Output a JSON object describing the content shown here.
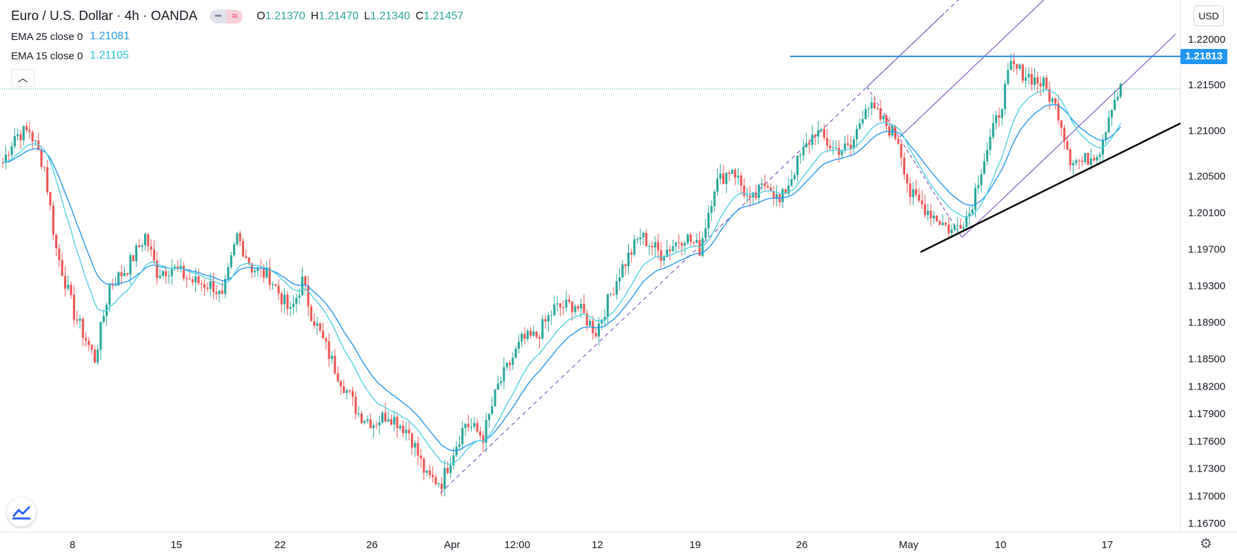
{
  "legend": {
    "symbol": "Euro / U.S. Dollar · 4h · OANDA",
    "open_label": "O",
    "open": "1.21370",
    "high_label": "H",
    "high": "1.21470",
    "low_label": "L",
    "low": "1.21340",
    "close_label": "C",
    "close": "1.21457",
    "ema1_label": "EMA 25 close 0",
    "ema1_value": "1.21081",
    "ema2_label": "EMA 15 close 0",
    "ema2_value": "1.21105",
    "icon1": "≈"
  },
  "currency_button": "USD",
  "price_badge": "1.21813",
  "colors": {
    "up": "#26a69a",
    "down": "#ef5350",
    "ema_slow": "#2196f3",
    "ema_fast": "#4dd0e1",
    "channel": "#7e57c2",
    "resistance": "#1e88e5",
    "trendline": "#000000"
  },
  "chart_data": {
    "type": "line",
    "title": "Euro / U.S. Dollar · 4h · OANDA",
    "y_ticks": [
      1.22,
      1.215,
      1.21,
      1.205,
      1.201,
      1.197,
      1.193,
      1.189,
      1.185,
      1.182,
      1.179,
      1.176,
      1.173,
      1.17,
      1.167
    ],
    "y_tick_labels": [
      "1.22000",
      "1.21500",
      "1.21000",
      "1.20500",
      "1.20100",
      "1.19700",
      "1.19300",
      "1.18900",
      "1.18500",
      "1.18200",
      "1.17900",
      "1.17600",
      "1.17300",
      "1.17000",
      "1.16700"
    ],
    "x_tick_labels": [
      "8",
      "15",
      "22",
      "26",
      "Apr",
      "12:00",
      "12",
      "19",
      "26",
      "May",
      "10",
      "17"
    ],
    "x_tick_bars": [
      24,
      59,
      94,
      125,
      152,
      174,
      201,
      234,
      270,
      306,
      337,
      373
    ],
    "bar_count": 378,
    "ylim": [
      1.1655,
      1.2235
    ],
    "price_path": [
      [
        0,
        1.2065
      ],
      [
        4,
        1.2095
      ],
      [
        9,
        1.21
      ],
      [
        14,
        1.206
      ],
      [
        18,
        1.197
      ],
      [
        24,
        1.19
      ],
      [
        31,
        1.185
      ],
      [
        36,
        1.193
      ],
      [
        42,
        1.195
      ],
      [
        48,
        1.1985
      ],
      [
        52,
        1.1945
      ],
      [
        57,
        1.195
      ],
      [
        64,
        1.1935
      ],
      [
        71,
        1.193
      ],
      [
        74,
        1.1915
      ],
      [
        79,
        1.1985
      ],
      [
        84,
        1.195
      ],
      [
        90,
        1.194
      ],
      [
        97,
        1.19
      ],
      [
        101,
        1.1935
      ],
      [
        104,
        1.19
      ],
      [
        112,
        1.184
      ],
      [
        120,
        1.179
      ],
      [
        125,
        1.178
      ],
      [
        130,
        1.179
      ],
      [
        137,
        1.177
      ],
      [
        143,
        1.172
      ],
      [
        148,
        1.1715
      ],
      [
        152,
        1.175
      ],
      [
        156,
        1.178
      ],
      [
        162,
        1.1765
      ],
      [
        167,
        1.182
      ],
      [
        175,
        1.187
      ],
      [
        180,
        1.1875
      ],
      [
        186,
        1.1905
      ],
      [
        193,
        1.191
      ],
      [
        200,
        1.188
      ],
      [
        208,
        1.1945
      ],
      [
        215,
        1.1985
      ],
      [
        222,
        1.1965
      ],
      [
        230,
        1.1985
      ],
      [
        235,
        1.197
      ],
      [
        240,
        1.204
      ],
      [
        246,
        1.206
      ],
      [
        252,
        1.202
      ],
      [
        258,
        1.2045
      ],
      [
        262,
        1.202
      ],
      [
        268,
        1.2065
      ],
      [
        274,
        1.21
      ],
      [
        280,
        1.208
      ],
      [
        286,
        1.208
      ],
      [
        291,
        1.213
      ],
      [
        297,
        1.211
      ],
      [
        302,
        1.209
      ],
      [
        306,
        1.203
      ],
      [
        313,
        1.201
      ],
      [
        320,
        1.199
      ],
      [
        326,
        1.201
      ],
      [
        330,
        1.206
      ],
      [
        336,
        1.212
      ],
      [
        340,
        1.217
      ],
      [
        346,
        1.216
      ],
      [
        351,
        1.215
      ],
      [
        356,
        1.212
      ],
      [
        360,
        1.207
      ],
      [
        364,
        1.2065
      ],
      [
        370,
        1.208
      ],
      [
        374,
        1.213
      ],
      [
        377,
        1.21457
      ]
    ],
    "resistance_level": 1.21813,
    "current_price_level": 1.21457
  }
}
